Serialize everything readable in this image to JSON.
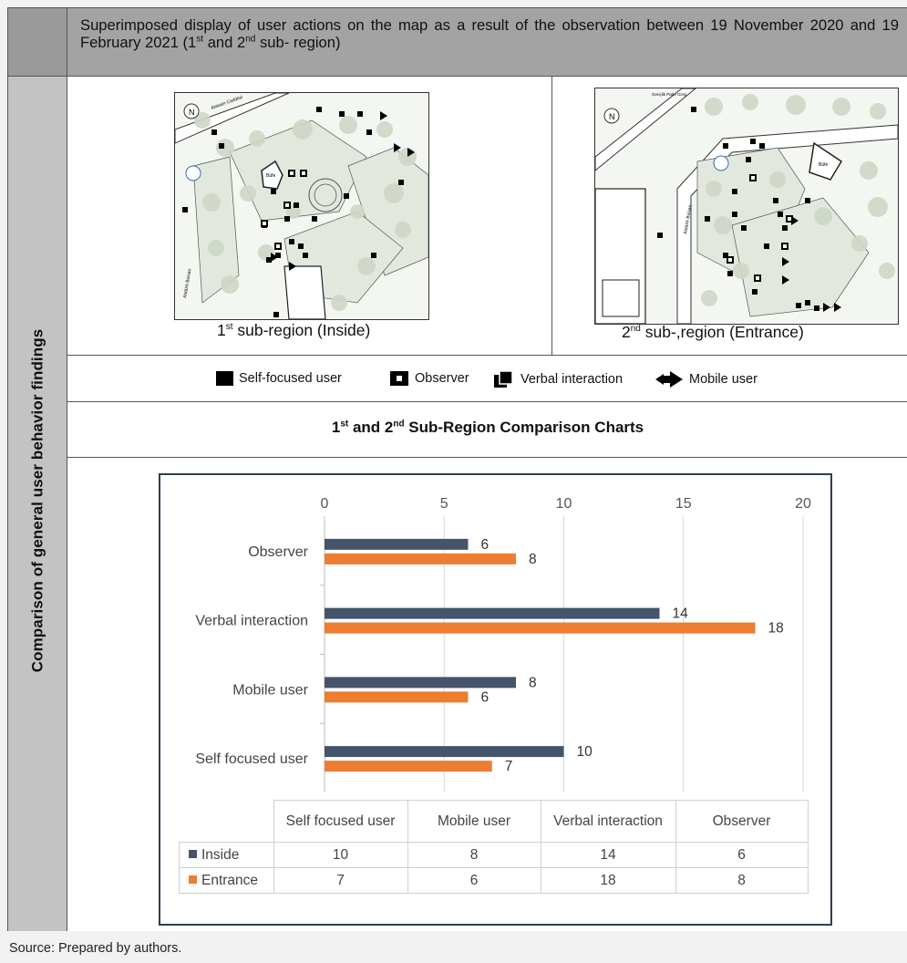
{
  "header": {
    "text_before_1": "Superimposed display of user actions on the map as a result of the observation between 19 November 2020 and 19 February 2021 (1",
    "sup_1": "st",
    "text_mid": " and 2",
    "sup_2": "nd",
    "text_end": " sub- region)"
  },
  "side_title": "Comparison of general user behavior findings",
  "maps": {
    "map1": {
      "num": "1",
      "sup": "st",
      "caption": " sub-region (Inside)",
      "street_label": "Atasam Caddesi",
      "kiosk_label": "Büfe",
      "street_label_2": "Atatürk Bulvarı"
    },
    "map2": {
      "num": "2",
      "sup": "nd",
      "caption": " sub-,region (Entrance)",
      "street_label": "Atatürk Bulvarı",
      "kiosk_label": "Büfe",
      "top_label": "Gençlik Parkı Girişi"
    }
  },
  "legend": {
    "self_focused": "Self-focused user",
    "observer": "Observer",
    "verbal": "Verbal interaction",
    "mobile": "Mobile user"
  },
  "subtitle": {
    "a": "1",
    "a_sup": "st",
    "mid": " and 2",
    "b_sup": "nd",
    "end": " Sub-Region Comparison Charts"
  },
  "colors": {
    "inside": "#44546a",
    "entrance": "#ed7d31"
  },
  "chart_data": {
    "type": "bar",
    "orientation": "horizontal",
    "categories": [
      "Observer",
      "Verbal interaction",
      "Mobile user",
      "Self focused user"
    ],
    "series": [
      {
        "name": "Inside",
        "values": [
          6,
          14,
          8,
          10
        ]
      },
      {
        "name": "Entrance",
        "values": [
          8,
          18,
          6,
          7
        ]
      }
    ],
    "xlim": [
      0,
      20
    ],
    "xticks": [
      0,
      5,
      10,
      15,
      20
    ],
    "grid": true,
    "data_labels": true,
    "table": {
      "columns": [
        "Self focused user",
        "Mobile user",
        "Verbal interaction",
        "Observer"
      ],
      "rows": [
        {
          "name": "Inside",
          "values": [
            "10",
            "8",
            "14",
            "6"
          ]
        },
        {
          "name": "Entrance",
          "values": [
            "7",
            "6",
            "18",
            "8"
          ]
        }
      ]
    }
  },
  "source": "Source: Prepared by authors."
}
